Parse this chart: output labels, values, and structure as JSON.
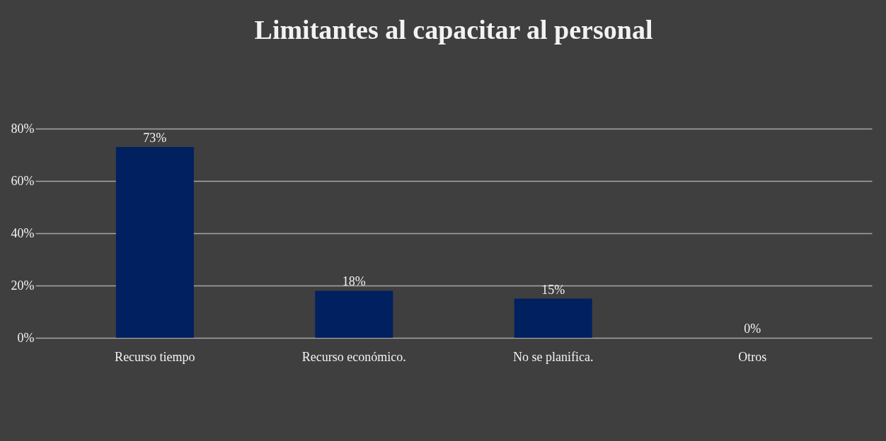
{
  "chart_data": {
    "type": "bar",
    "title": "Limitantes al capacitar al personal",
    "categories": [
      "Recurso tiempo",
      "Recurso económico.",
      "No se planifica.",
      "Otros"
    ],
    "values": [
      73,
      18,
      15,
      0
    ],
    "value_labels": [
      "73%",
      "18%",
      "15%",
      "0%"
    ],
    "color": "#002060",
    "ylim": [
      0,
      80
    ],
    "yticks": [
      {
        "value": 0,
        "label": "0%"
      },
      {
        "value": 20,
        "label": "20%"
      },
      {
        "value": 40,
        "label": "40%"
      },
      {
        "value": 60,
        "label": "60%"
      },
      {
        "value": 80,
        "label": "80%"
      }
    ],
    "grid": "y"
  }
}
